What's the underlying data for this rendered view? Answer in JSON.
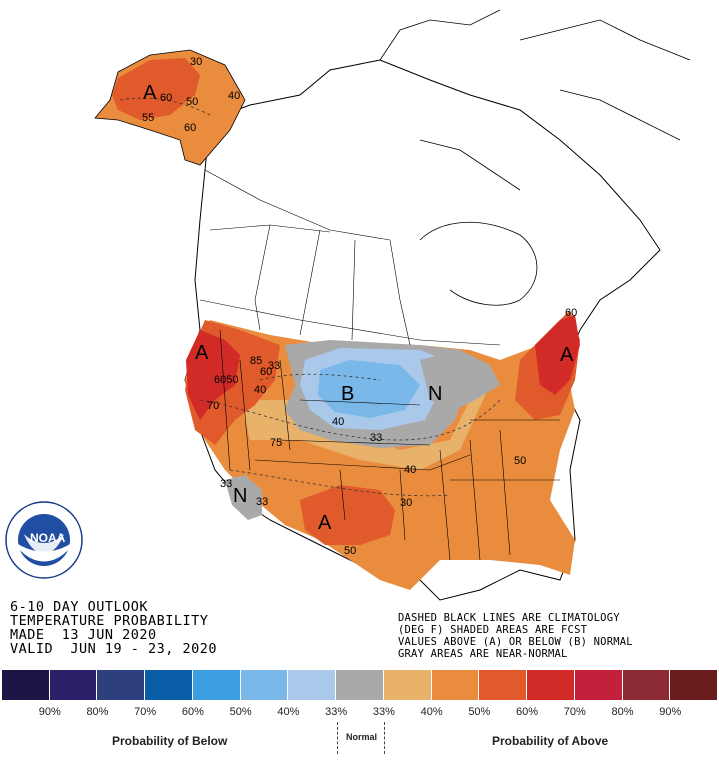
{
  "title": {
    "line1": "6-10 DAY OUTLOOK",
    "line2": "TEMPERATURE PROBABILITY",
    "line3": "MADE  13 JUN 2020",
    "line4": "VALID  JUN 19 - 23, 2020"
  },
  "notes": {
    "line1": "DASHED BLACK LINES ARE CLIMATOLOGY",
    "line2": "(DEG F) SHADED AREAS ARE FCST",
    "line3": "VALUES ABOVE (A) OR BELOW (B) NORMAL",
    "line4": "GRAY AREAS ARE NEAR-NORMAL"
  },
  "legend": {
    "below_label": "Probability of Below",
    "normal_label": "Normal",
    "above_label": "Probability of Above",
    "ticks": [
      "90%",
      "80%",
      "70%",
      "60%",
      "50%",
      "40%",
      "33%",
      "33%",
      "40%",
      "50%",
      "60%",
      "70%",
      "80%",
      "90%"
    ],
    "colors": [
      "#1c1545",
      "#2a2168",
      "#2d3f7c",
      "#0a5ea8",
      "#3b9ee0",
      "#79b8e8",
      "#a9c8ea",
      "#a9a9a9",
      "#e8b26a",
      "#e98c3e",
      "#e05a2b",
      "#d22a27",
      "#c2203b",
      "#8c2b33",
      "#6b1c1c"
    ]
  },
  "map_labels": {
    "alaska_a": "A",
    "west_a": "A",
    "northeast_a": "A",
    "southwest_a": "A",
    "central_b": "B",
    "great_lakes_n": "N",
    "arizona_n": "N"
  },
  "contour_labels": {
    "ak_30": "30",
    "ak_60": "60",
    "ak_50": "50",
    "ak_40": "40",
    "ak_55": "55",
    "ak_60b": "60",
    "w_6050": "6050",
    "w_70": "70",
    "w_85": "85",
    "w_60": "60",
    "w_33": "33",
    "w_40": "40",
    "w_75": "75",
    "c_40": "40",
    "c_33": "33",
    "e_40": "40",
    "e_30": "30",
    "e_50": "50",
    "ne_60": "60",
    "az_33": "33",
    "az_33b": "33",
    "tx_50": "50"
  },
  "logo": {
    "text": "NOAA",
    "ring_text": "NATIONAL OCEANIC AND ATMOSPHERIC ADMINISTRATION · U.S. DEPARTMENT OF COMMERCE"
  },
  "colors": {
    "near_normal": "#a9a9a9",
    "above_33": "#e8b26a",
    "above_40": "#e98c3e",
    "above_50": "#e05a2b",
    "above_60": "#d22a27",
    "below_33": "#a9c8ea",
    "below_40": "#79b8e8"
  }
}
